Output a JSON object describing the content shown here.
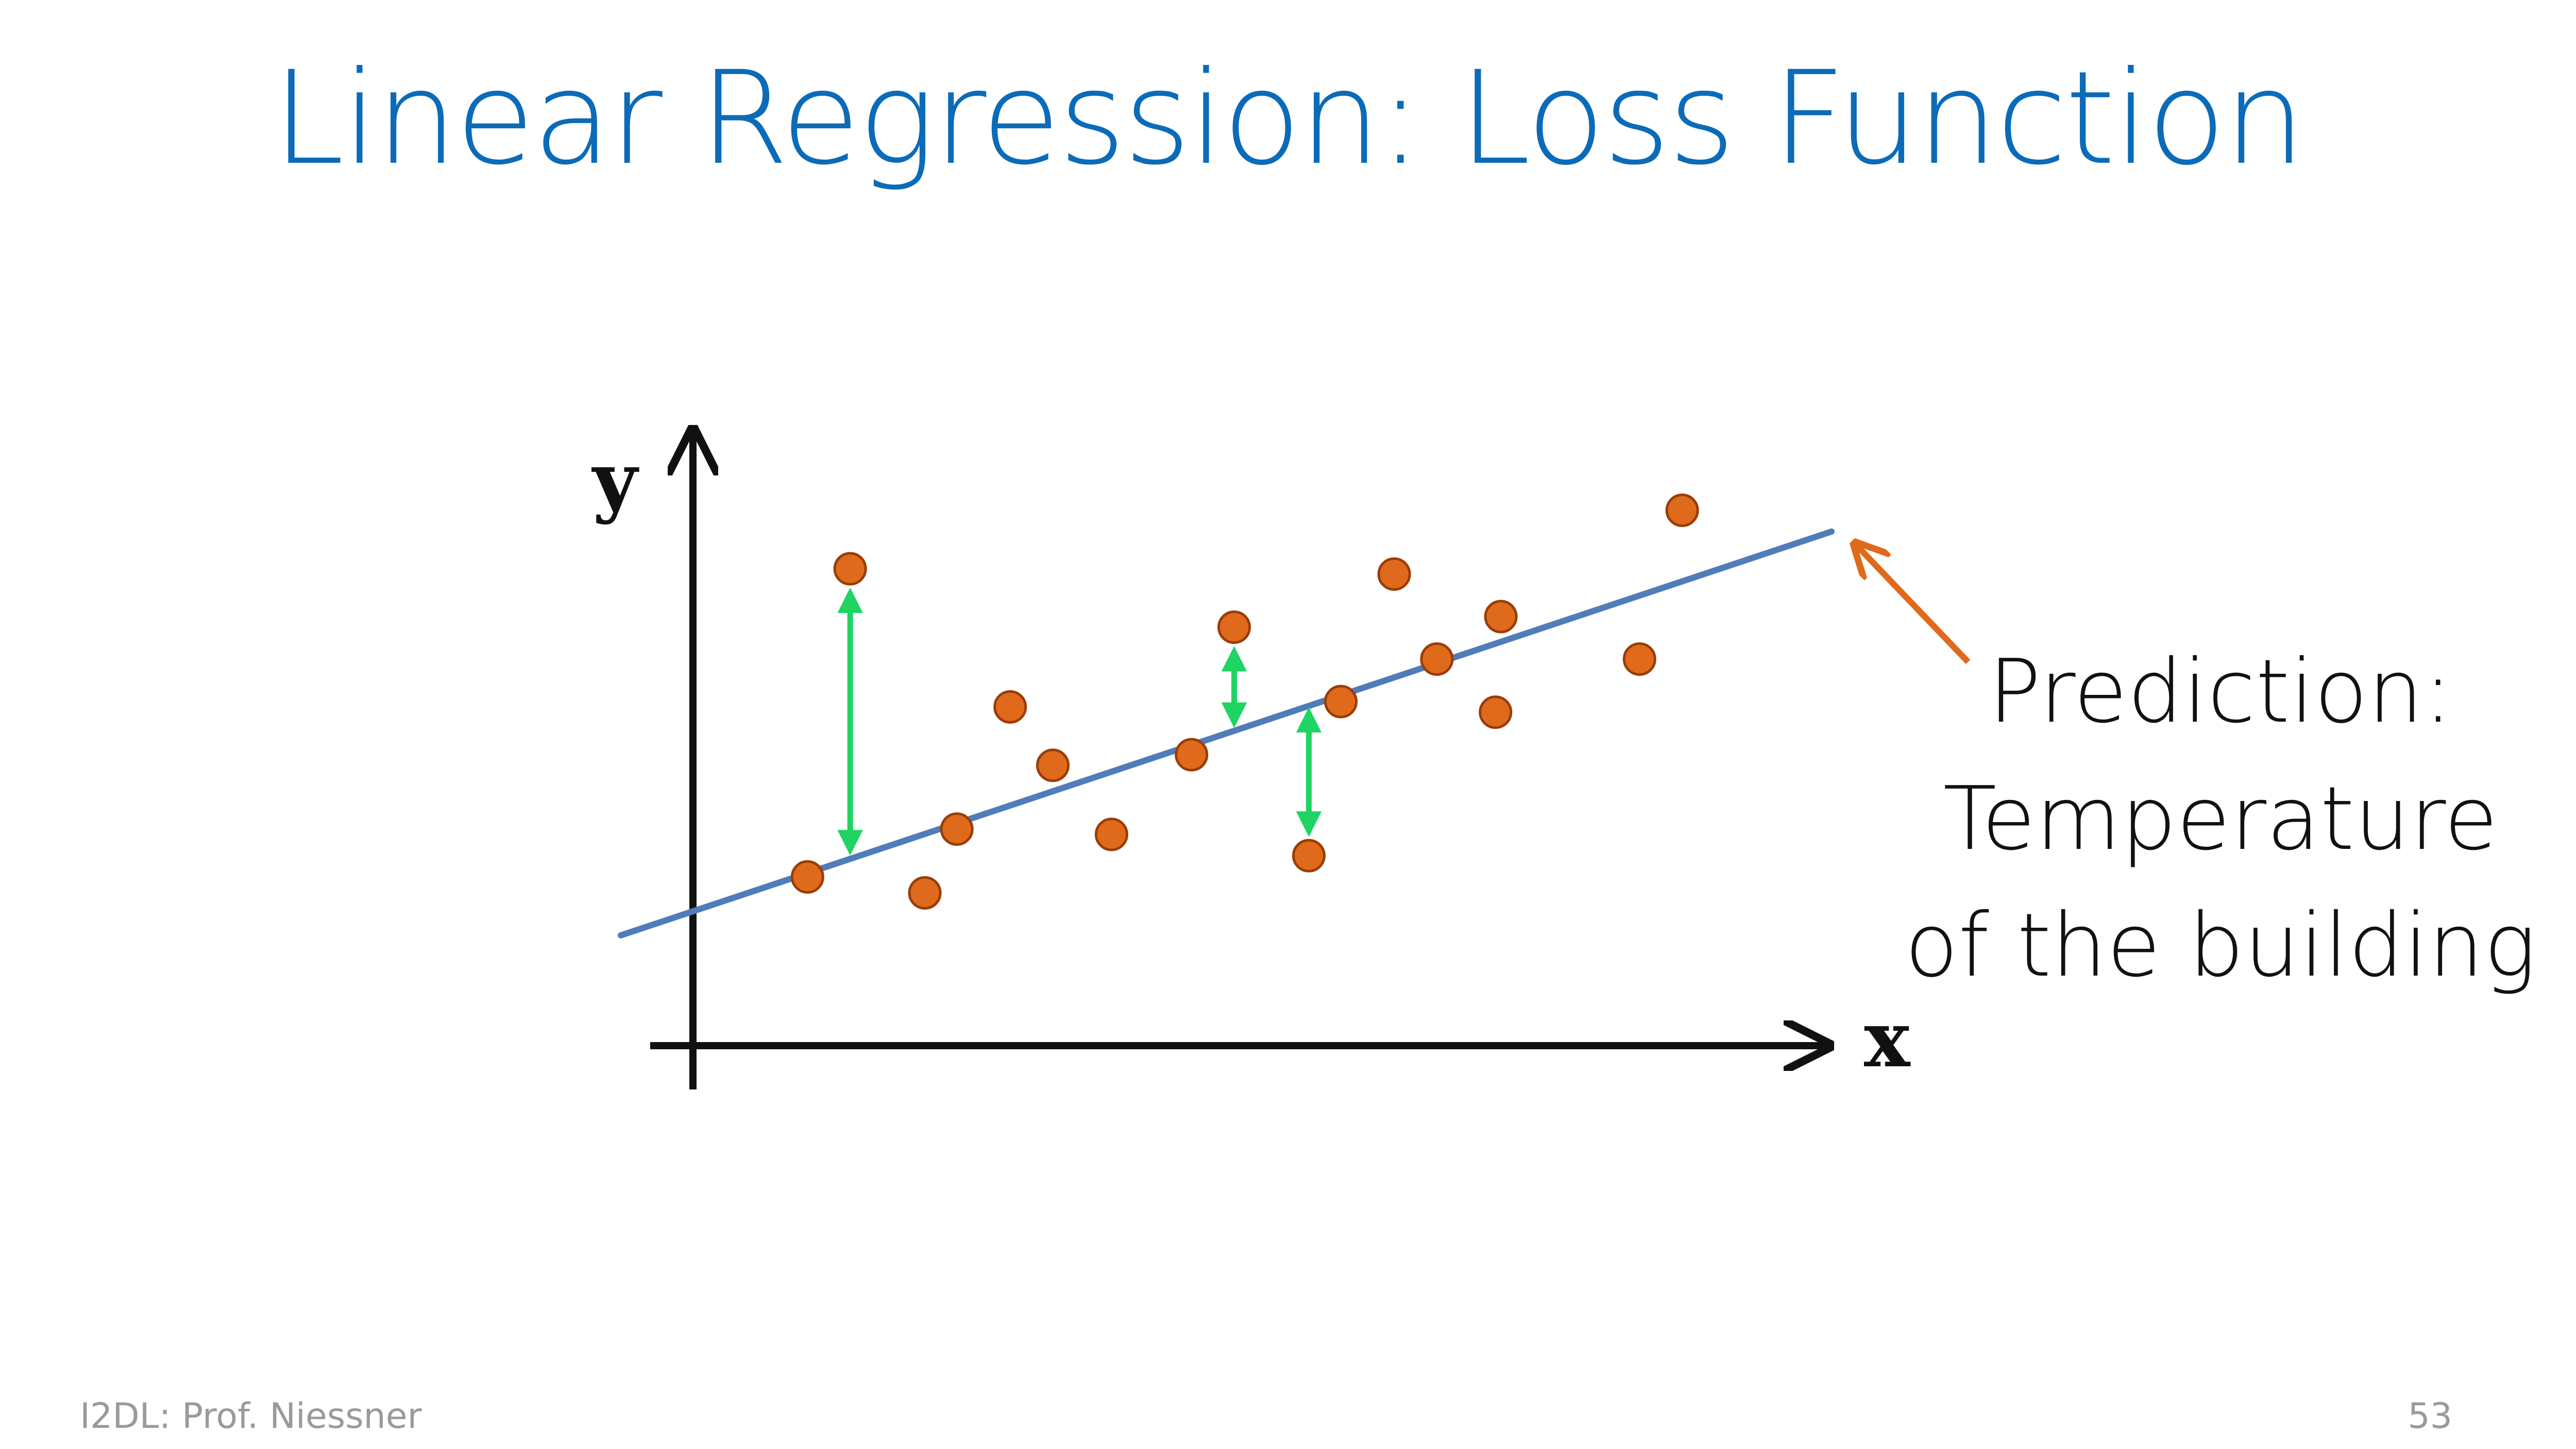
{
  "slide": {
    "title": "Linear Regression: Loss Function",
    "footer_left": "I2DL: Prof. Niessner",
    "page_number": "53"
  },
  "chart_data": {
    "type": "scatter",
    "x_axis_label": "x",
    "y_axis_label": "y",
    "x_range": [
      -0.13,
      2.14
    ],
    "y_range": [
      -0.08,
      1.19
    ],
    "grid": false,
    "legend": "none",
    "points": [
      {
        "x": 0.22,
        "y": 0.32
      },
      {
        "x": 0.3,
        "y": 0.9
      },
      {
        "x": 0.44,
        "y": 0.29
      },
      {
        "x": 0.5,
        "y": 0.41
      },
      {
        "x": 0.6,
        "y": 0.64
      },
      {
        "x": 0.68,
        "y": 0.53
      },
      {
        "x": 0.79,
        "y": 0.4
      },
      {
        "x": 0.94,
        "y": 0.55
      },
      {
        "x": 1.02,
        "y": 0.79
      },
      {
        "x": 1.16,
        "y": 0.36
      },
      {
        "x": 1.22,
        "y": 0.65
      },
      {
        "x": 1.32,
        "y": 0.89
      },
      {
        "x": 1.4,
        "y": 0.73
      },
      {
        "x": 1.51,
        "y": 0.63
      },
      {
        "x": 1.52,
        "y": 0.81
      },
      {
        "x": 1.78,
        "y": 0.73
      },
      {
        "x": 1.86,
        "y": 1.01
      }
    ],
    "regression_line": {
      "x": [
        -0.13,
        2.14
      ],
      "y": [
        0.21,
        0.97
      ]
    },
    "residual_arrows": [
      {
        "x": 0.3,
        "y_from": 0.9,
        "y_to": 0.36
      },
      {
        "x": 1.02,
        "y_from": 0.79,
        "y_to": 0.6
      },
      {
        "x": 1.16,
        "y_from": 0.36,
        "y_to": 0.64
      }
    ],
    "annotation": {
      "lines": [
        "Prediction:",
        "Temperature",
        "of the building"
      ],
      "arrow_target": "end of regression line"
    },
    "colors": {
      "title": "#0b6bb8",
      "points": "#e06a1b",
      "point_edge": "#9a3d08",
      "regression_line": "#4f7cba",
      "residual_arrows": "#1fd463",
      "annotation_arrow": "#e06a1b",
      "axes": "#111111"
    }
  }
}
